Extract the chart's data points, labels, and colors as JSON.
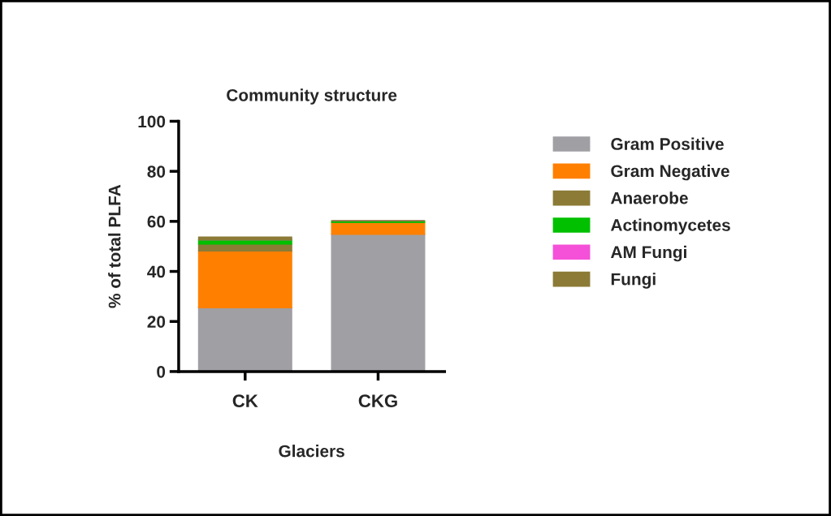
{
  "chart_data": {
    "type": "bar",
    "title": "Community structure",
    "xlabel": "Glaciers",
    "ylabel": "% of total PLFA",
    "categories": [
      "CK",
      "CKG"
    ],
    "stacked": true,
    "series": [
      {
        "name": "Gram Positive",
        "color": "#a09fa4",
        "values": [
          25.5,
          54.8
        ]
      },
      {
        "name": "Gram Negative",
        "color": "#ff8000",
        "values": [
          22.7,
          4.8
        ]
      },
      {
        "name": "Anaerobe",
        "color": "#8b7b37",
        "values": [
          2.7,
          0
        ]
      },
      {
        "name": "Actinomycetes",
        "color": "#00c000",
        "values": [
          1.7,
          0.6
        ]
      },
      {
        "name": "AM Fungi",
        "color": "#f550d8",
        "values": [
          0,
          0
        ]
      },
      {
        "name": "Fungi",
        "color": "#8b7b37",
        "values": [
          1.1,
          0
        ]
      }
    ],
    "ylim": [
      0,
      100
    ],
    "yticks": [
      0,
      20,
      40,
      60,
      80,
      100
    ],
    "grid": false,
    "legend": "right"
  }
}
